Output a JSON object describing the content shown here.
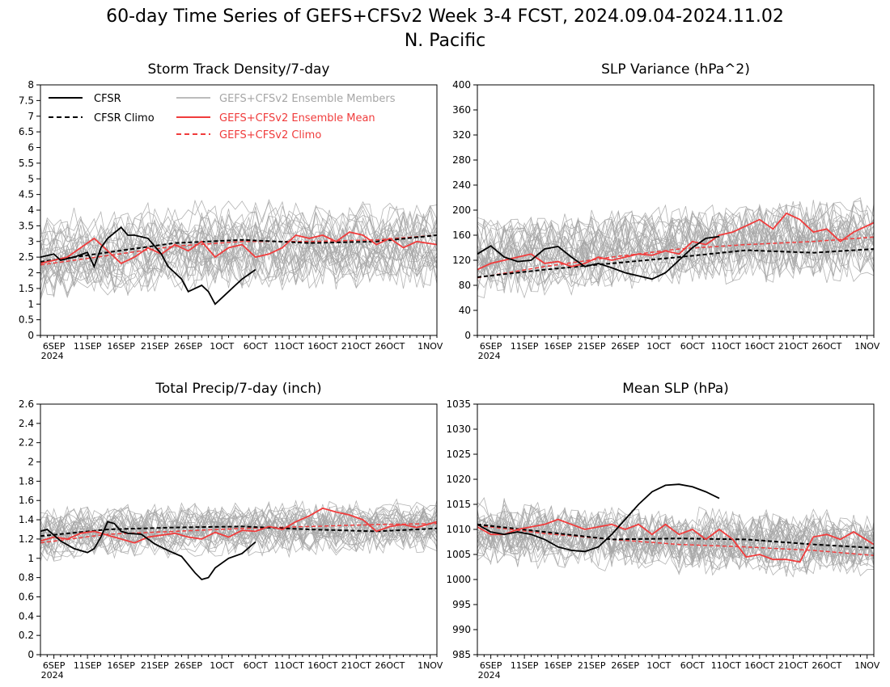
{
  "figure": {
    "title_line1": "60-day Time Series of GEFS+CFSv2 Week 3-4 FCST, 2024.09.04-2024.11.02",
    "title_line2": "N. Pacific"
  },
  "colors": {
    "cfsr": "#000000",
    "cfsr_climo": "#000000",
    "members": "#a6a6a6",
    "ens_mean": "#f03c3c",
    "gefs_climo": "#f03c3c"
  },
  "legend": {
    "cfsr": "CFSR",
    "cfsr_climo": "CFSR Climo",
    "members": "GEFS+CFSv2 Ensemble Members",
    "ens_mean": "GEFS+CFSv2 Ensemble Mean",
    "gefs_climo": "GEFS+CFSv2 Climo",
    "placement": "top-left of first panel"
  },
  "x_axis": {
    "ticks": [
      "6SEP\n2024",
      "11SEP",
      "16SEP",
      "21SEP",
      "26SEP",
      "1OCT",
      "6OCT",
      "11OCT",
      "16OCT",
      "21OCT",
      "26OCT",
      "1NOV"
    ],
    "tick_days": [
      2,
      7,
      12,
      17,
      22,
      27,
      32,
      37,
      42,
      47,
      52,
      58
    ],
    "range_days": [
      0,
      59
    ]
  },
  "chart_data": [
    {
      "type": "line",
      "title": "Storm Track Density/7-day",
      "ylim": [
        0,
        8
      ],
      "yticks": [
        0,
        0.5,
        1,
        1.5,
        2,
        2.5,
        3,
        3.5,
        4,
        4.5,
        5,
        5.5,
        6,
        6.5,
        7,
        7.5,
        8
      ],
      "ytick_labels": [
        "0",
        "0.5",
        "1",
        "1.5",
        "2",
        "2.5",
        "3",
        "3.5",
        "4",
        "4.5",
        "5",
        "5.5",
        "6",
        "6.5",
        "7",
        "7.5",
        "8"
      ],
      "members_band": {
        "center": 2.8,
        "spread": 0.75,
        "noise": 0.75,
        "count": 30,
        "seed": 11
      },
      "series": [
        {
          "name": "CFSR",
          "x": [
            0,
            2,
            3,
            5,
            7,
            8,
            9,
            10,
            12,
            13,
            14,
            16,
            18,
            19,
            20,
            21,
            22,
            24,
            25,
            26,
            28,
            29,
            30,
            32
          ],
          "y": [
            2.5,
            2.6,
            2.4,
            2.5,
            2.65,
            2.2,
            2.8,
            3.1,
            3.45,
            3.2,
            3.2,
            3.1,
            2.6,
            2.2,
            2.0,
            1.8,
            1.4,
            1.6,
            1.4,
            1.0,
            1.4,
            1.6,
            1.8,
            2.1
          ]
        },
        {
          "name": "CFSR Climo",
          "x": [
            0,
            10,
            20,
            30,
            40,
            50,
            59
          ],
          "y": [
            2.35,
            2.65,
            2.95,
            3.05,
            2.95,
            3.0,
            3.2
          ]
        },
        {
          "name": "GEFS+CFSv2 Ensemble Mean",
          "x": [
            0,
            2,
            4,
            6,
            8,
            10,
            12,
            14,
            16,
            18,
            20,
            22,
            24,
            26,
            28,
            30,
            32,
            34,
            36,
            38,
            40,
            42,
            44,
            46,
            48,
            50,
            52,
            54,
            56,
            59
          ],
          "y": [
            2.3,
            2.4,
            2.5,
            2.8,
            3.1,
            2.7,
            2.3,
            2.5,
            2.8,
            2.6,
            2.9,
            2.7,
            3.0,
            2.5,
            2.8,
            2.9,
            2.5,
            2.6,
            2.8,
            3.2,
            3.1,
            3.2,
            3.0,
            3.3,
            3.2,
            2.9,
            3.1,
            2.8,
            3.0,
            2.9
          ]
        },
        {
          "name": "GEFS+CFSv2 Climo",
          "x": [
            0,
            10,
            20,
            30,
            40,
            50,
            59
          ],
          "y": [
            2.25,
            2.55,
            2.85,
            3.0,
            3.0,
            3.05,
            3.2
          ]
        }
      ]
    },
    {
      "type": "line",
      "title": "SLP Variance (hPa^2)",
      "ylim": [
        0,
        400
      ],
      "yticks": [
        0,
        40,
        80,
        120,
        160,
        200,
        240,
        280,
        320,
        360,
        400
      ],
      "ytick_labels": [
        "0",
        "40",
        "80",
        "120",
        "160",
        "200",
        "240",
        "280",
        "320",
        "360",
        "400"
      ],
      "members_band": {
        "center": 150,
        "spread": 30,
        "noise": 40,
        "count": 30,
        "seed": 23
      },
      "series": [
        {
          "name": "CFSR",
          "x": [
            0,
            2,
            4,
            6,
            8,
            10,
            12,
            14,
            16,
            18,
            20,
            22,
            24,
            26,
            28,
            30,
            32,
            34,
            36
          ],
          "y": [
            130,
            143,
            125,
            118,
            120,
            138,
            142,
            125,
            110,
            115,
            108,
            100,
            95,
            90,
            100,
            120,
            140,
            155,
            158
          ]
        },
        {
          "name": "CFSR Climo",
          "x": [
            0,
            10,
            20,
            30,
            40,
            50,
            59
          ],
          "y": [
            93,
            105,
            115,
            125,
            136,
            132,
            138
          ]
        },
        {
          "name": "GEFS+CFSv2 Ensemble Mean",
          "x": [
            0,
            2,
            4,
            6,
            8,
            10,
            12,
            14,
            16,
            18,
            20,
            22,
            24,
            26,
            28,
            30,
            32,
            34,
            36,
            38,
            40,
            42,
            44,
            46,
            48,
            50,
            52,
            54,
            56,
            59
          ],
          "y": [
            105,
            115,
            120,
            125,
            130,
            115,
            118,
            110,
            115,
            125,
            120,
            125,
            130,
            128,
            135,
            130,
            150,
            145,
            160,
            165,
            175,
            185,
            170,
            195,
            185,
            165,
            170,
            150,
            165,
            180
          ]
        },
        {
          "name": "GEFS+CFSv2 Climo",
          "x": [
            0,
            10,
            20,
            30,
            40,
            50,
            59
          ],
          "y": [
            92,
            110,
            125,
            138,
            145,
            150,
            157
          ]
        }
      ]
    },
    {
      "type": "line",
      "title": "Total Precip/7-day (inch)",
      "ylim": [
        0,
        2.6
      ],
      "yticks": [
        0,
        0.2,
        0.4,
        0.6,
        0.8,
        1,
        1.2,
        1.4,
        1.6,
        1.8,
        2,
        2.2,
        2.4,
        2.6
      ],
      "ytick_labels": [
        "0",
        "0.2",
        "0.4",
        "0.6",
        "0.8",
        "1",
        "1.2",
        "1.4",
        "1.6",
        "1.8",
        "2",
        "2.2",
        "2.4",
        "2.6"
      ],
      "members_band": {
        "center": 1.3,
        "spread": 0.12,
        "noise": 0.18,
        "count": 30,
        "seed": 37
      },
      "series": [
        {
          "name": "CFSR",
          "x": [
            0,
            1,
            3,
            5,
            7,
            8,
            9,
            10,
            11,
            12,
            13,
            15,
            17,
            19,
            21,
            23,
            24,
            25,
            26,
            28,
            30,
            32
          ],
          "y": [
            1.28,
            1.3,
            1.18,
            1.1,
            1.06,
            1.1,
            1.22,
            1.38,
            1.36,
            1.28,
            1.26,
            1.25,
            1.15,
            1.08,
            1.02,
            0.85,
            0.78,
            0.8,
            0.9,
            1.0,
            1.05,
            1.17
          ]
        },
        {
          "name": "CFSR Climo",
          "x": [
            0,
            10,
            20,
            30,
            40,
            50,
            59
          ],
          "y": [
            1.23,
            1.3,
            1.32,
            1.33,
            1.3,
            1.28,
            1.31
          ]
        },
        {
          "name": "GEFS+CFSv2 Ensemble Mean",
          "x": [
            0,
            2,
            4,
            6,
            8,
            10,
            12,
            14,
            16,
            18,
            20,
            22,
            24,
            26,
            28,
            30,
            32,
            34,
            36,
            38,
            40,
            42,
            44,
            46,
            48,
            50,
            52,
            54,
            56,
            59
          ],
          "y": [
            1.18,
            1.22,
            1.2,
            1.26,
            1.28,
            1.24,
            1.2,
            1.16,
            1.22,
            1.24,
            1.26,
            1.22,
            1.2,
            1.27,
            1.22,
            1.29,
            1.28,
            1.33,
            1.3,
            1.38,
            1.44,
            1.52,
            1.48,
            1.45,
            1.4,
            1.28,
            1.33,
            1.35,
            1.32,
            1.38
          ]
        },
        {
          "name": "GEFS+CFSv2 Climo",
          "x": [
            0,
            10,
            20,
            30,
            40,
            50,
            59
          ],
          "y": [
            1.16,
            1.25,
            1.28,
            1.31,
            1.33,
            1.35,
            1.36
          ]
        }
      ]
    },
    {
      "type": "line",
      "title": "Mean SLP (hPa)",
      "ylim": [
        985,
        1035
      ],
      "yticks": [
        985,
        990,
        995,
        1000,
        1005,
        1010,
        1015,
        1020,
        1025,
        1030,
        1035
      ],
      "ytick_labels": [
        "985",
        "990",
        "995",
        "1000",
        "1005",
        "1010",
        "1015",
        "1020",
        "1025",
        "1030",
        "1035"
      ],
      "members_band": {
        "center": 1008.5,
        "spread": 2.5,
        "noise": 4.5,
        "count": 30,
        "seed": 53
      },
      "series": [
        {
          "name": "CFSR",
          "x": [
            0,
            2,
            4,
            6,
            8,
            10,
            12,
            14,
            16,
            18,
            20,
            22,
            24,
            26,
            28,
            30,
            32,
            34,
            36
          ],
          "y": [
            1011,
            1009.5,
            1009,
            1009.5,
            1009,
            1008,
            1006.5,
            1005.8,
            1005.6,
            1006.5,
            1009,
            1012,
            1015,
            1017.5,
            1018.8,
            1019,
            1018.5,
            1017.5,
            1016.2
          ]
        },
        {
          "name": "CFSR Climo",
          "x": [
            0,
            10,
            20,
            30,
            40,
            50,
            59
          ],
          "y": [
            1011,
            1009.5,
            1008,
            1008.2,
            1008,
            1007,
            1006.3
          ]
        },
        {
          "name": "GEFS+CFSv2 Ensemble Mean",
          "x": [
            0,
            2,
            4,
            6,
            8,
            10,
            12,
            14,
            16,
            18,
            20,
            22,
            24,
            26,
            28,
            30,
            32,
            34,
            36,
            38,
            40,
            42,
            44,
            46,
            48,
            50,
            52,
            54,
            56,
            59
          ],
          "y": [
            1010.5,
            1009,
            1009,
            1010,
            1010.5,
            1011,
            1012,
            1011,
            1010,
            1010.5,
            1011,
            1010,
            1011,
            1009,
            1011,
            1009,
            1010,
            1008,
            1010,
            1008,
            1004.5,
            1005,
            1004,
            1004,
            1003.5,
            1008.5,
            1009,
            1008,
            1009.5,
            1007
          ]
        },
        {
          "name": "GEFS+CFSv2 Climo",
          "x": [
            0,
            10,
            20,
            30,
            40,
            50,
            59
          ],
          "y": [
            1010.8,
            1009.2,
            1008,
            1007,
            1006.5,
            1005.8,
            1004.8
          ]
        }
      ]
    }
  ]
}
